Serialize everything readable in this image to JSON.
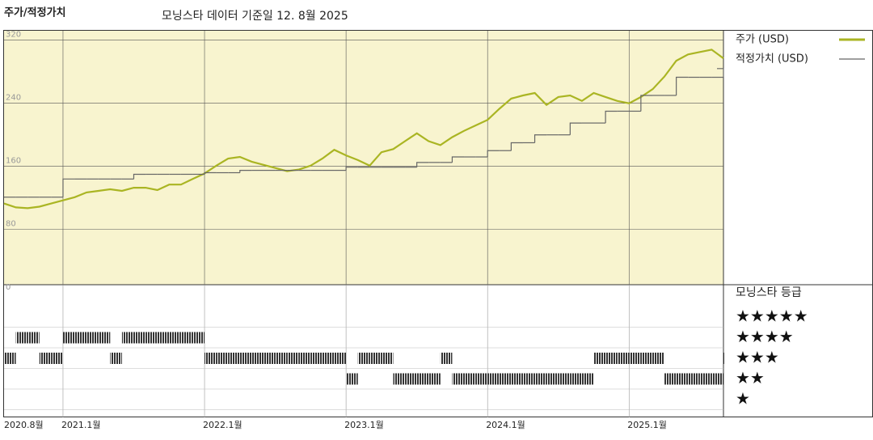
{
  "chart_data": {
    "type": "line",
    "title": "주가/적정가치",
    "subtitle": "모닝스타 데이터 기준일 12. 8월 2025",
    "x": [
      "2020-08",
      "2020-09",
      "2020-10",
      "2020-11",
      "2020-12",
      "2021-01",
      "2021-02",
      "2021-03",
      "2021-04",
      "2021-05",
      "2021-06",
      "2021-07",
      "2021-08",
      "2021-09",
      "2021-10",
      "2021-11",
      "2021-12",
      "2022-01",
      "2022-02",
      "2022-03",
      "2022-04",
      "2022-05",
      "2022-06",
      "2022-07",
      "2022-08",
      "2022-09",
      "2022-10",
      "2022-11",
      "2022-12",
      "2023-01",
      "2023-02",
      "2023-03",
      "2023-04",
      "2023-05",
      "2023-06",
      "2023-07",
      "2023-08",
      "2023-09",
      "2023-10",
      "2023-11",
      "2023-12",
      "2024-01",
      "2024-02",
      "2024-03",
      "2024-04",
      "2024-05",
      "2024-06",
      "2024-07",
      "2024-08",
      "2024-09",
      "2024-10",
      "2024-11",
      "2024-12",
      "2025-01",
      "2025-02",
      "2025-03",
      "2025-04",
      "2025-05",
      "2025-06",
      "2025-07",
      "2025-08",
      "2025-09"
    ],
    "series": [
      {
        "name": "주가 (USD)",
        "color": "#aab523",
        "style": "line",
        "values": [
          113,
          108,
          107,
          109,
          113,
          117,
          121,
          127,
          129,
          131,
          129,
          133,
          133,
          130,
          137,
          137,
          144,
          151,
          161,
          170,
          172,
          166,
          162,
          158,
          154,
          156,
          161,
          170,
          181,
          174,
          168,
          161,
          178,
          182,
          192,
          202,
          192,
          187,
          197,
          205,
          212,
          219,
          233,
          246,
          250,
          253,
          238,
          248,
          250,
          243,
          253,
          248,
          243,
          240,
          248,
          258,
          274,
          294,
          302,
          305,
          308,
          297
        ]
      },
      {
        "name": "적정가치 (USD)",
        "color": "#666666",
        "style": "step",
        "values": [
          121,
          121,
          121,
          121,
          121,
          144,
          144,
          144,
          144,
          144,
          144,
          150,
          150,
          150,
          150,
          150,
          150,
          152,
          152,
          152,
          155,
          155,
          155,
          155,
          155,
          155,
          155,
          155,
          155,
          159,
          159,
          159,
          159,
          159,
          159,
          165,
          165,
          165,
          172,
          172,
          172,
          180,
          180,
          190,
          190,
          200,
          200,
          200,
          215,
          215,
          215,
          230,
          230,
          230,
          250,
          250,
          250,
          273,
          273,
          273,
          273,
          284
        ]
      }
    ],
    "xlim": [
      "2020-08",
      "2025-09"
    ],
    "xticks": [
      {
        "value": "2020-08",
        "label": "2020.8월"
      },
      {
        "value": "2021-01",
        "label": "2021.1월"
      },
      {
        "value": "2022-01",
        "label": "2022.1월"
      },
      {
        "value": "2023-01",
        "label": "2023.1월"
      },
      {
        "value": "2024-01",
        "label": "2024.1월"
      },
      {
        "value": "2025-01",
        "label": "2025.1월"
      }
    ],
    "ylim": [
      10,
      332
    ],
    "yticks": [
      0,
      80,
      160,
      240,
      320
    ],
    "grid": true,
    "rating": {
      "title": "모닝스타 등급",
      "labels": [
        "★★★★★",
        "★★★★",
        "★★★",
        "★★",
        "★"
      ],
      "color": "#333333",
      "values": [
        3,
        4,
        4,
        3,
        3,
        4,
        4,
        4,
        4,
        3,
        4,
        4,
        4,
        4,
        4,
        4,
        4,
        3,
        3,
        3,
        3,
        3,
        3,
        3,
        3,
        3,
        3,
        3,
        3,
        2,
        3,
        3,
        3,
        2,
        2,
        2,
        2,
        3,
        2,
        2,
        2,
        2,
        2,
        2,
        2,
        2,
        2,
        2,
        2,
        2,
        3,
        3,
        3,
        3,
        3,
        3,
        2,
        2,
        2,
        2,
        2,
        3
      ]
    }
  }
}
